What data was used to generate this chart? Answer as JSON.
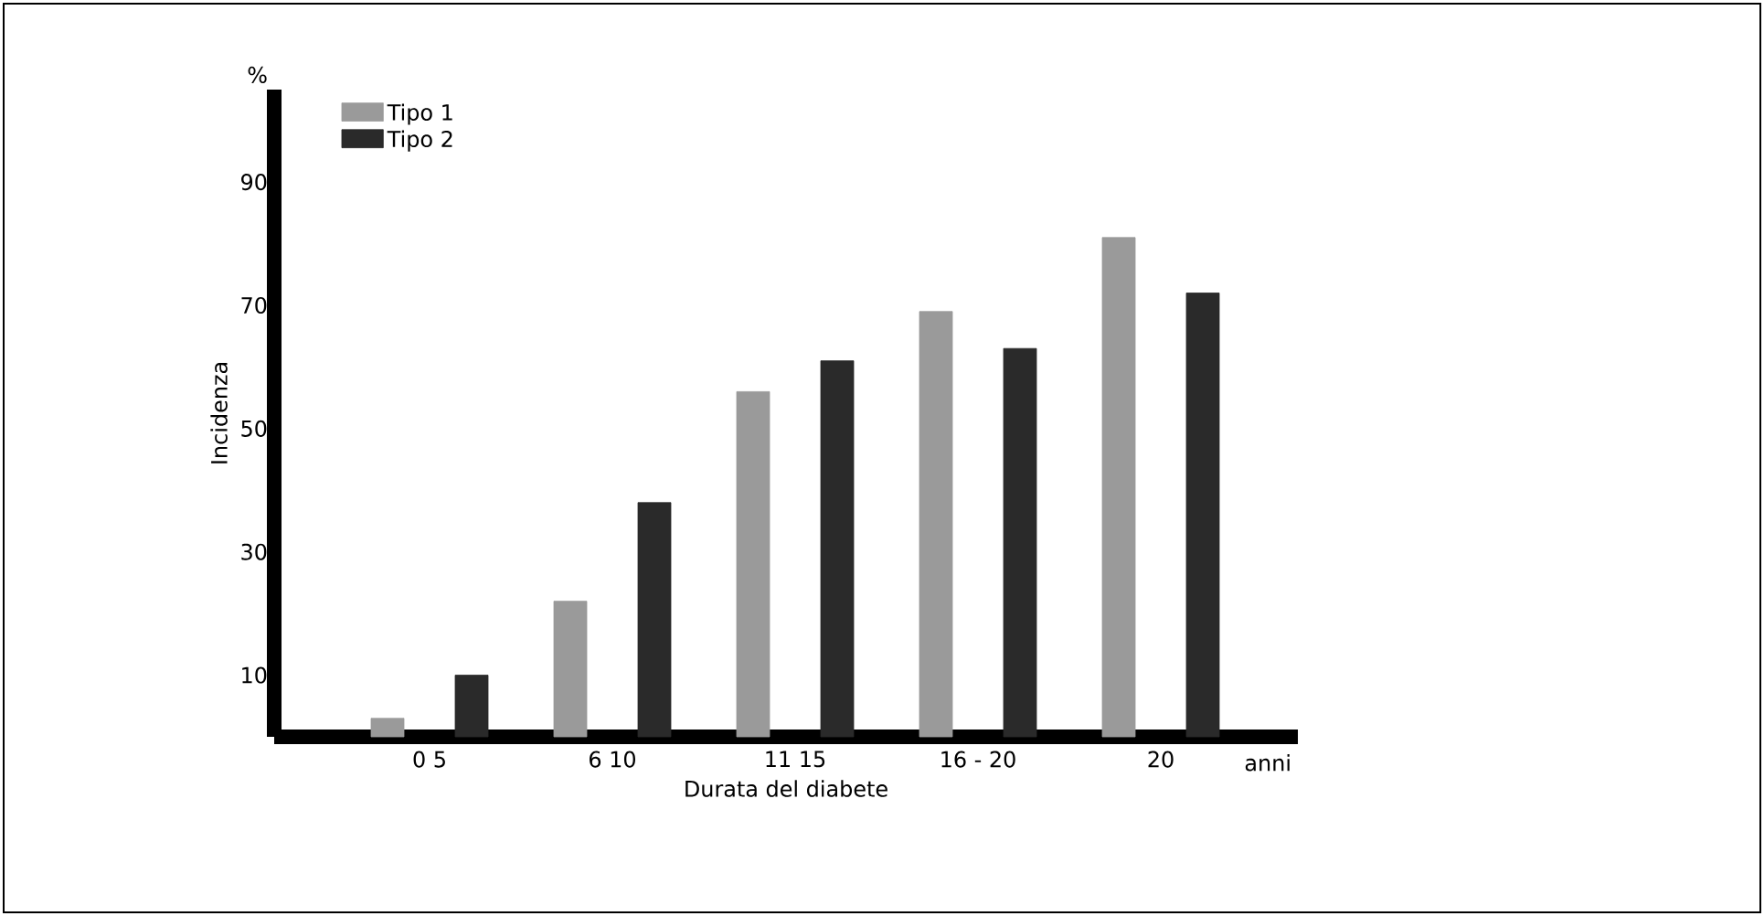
{
  "chart_data": {
    "type": "bar",
    "xlabel": "Durata del diabete",
    "ylabel": "Incidenza",
    "annotations": [
      "%",
      "anni"
    ],
    "categories": [
      "0 5",
      "6 10",
      "11 15",
      "16 - 20",
      "20"
    ],
    "series": [
      {
        "name": "Tipo 1",
        "color": "#9a9a9a",
        "values": [
          3,
          22,
          56,
          69,
          81
        ]
      },
      {
        "name": "Tipo 2",
        "color": "#2a2a2a",
        "values": [
          10,
          38,
          61,
          63,
          72
        ]
      }
    ],
    "ylim": [
      0,
      105
    ],
    "yticks": [
      10,
      30,
      50,
      70,
      90
    ],
    "grid": false,
    "legend": "top left"
  }
}
